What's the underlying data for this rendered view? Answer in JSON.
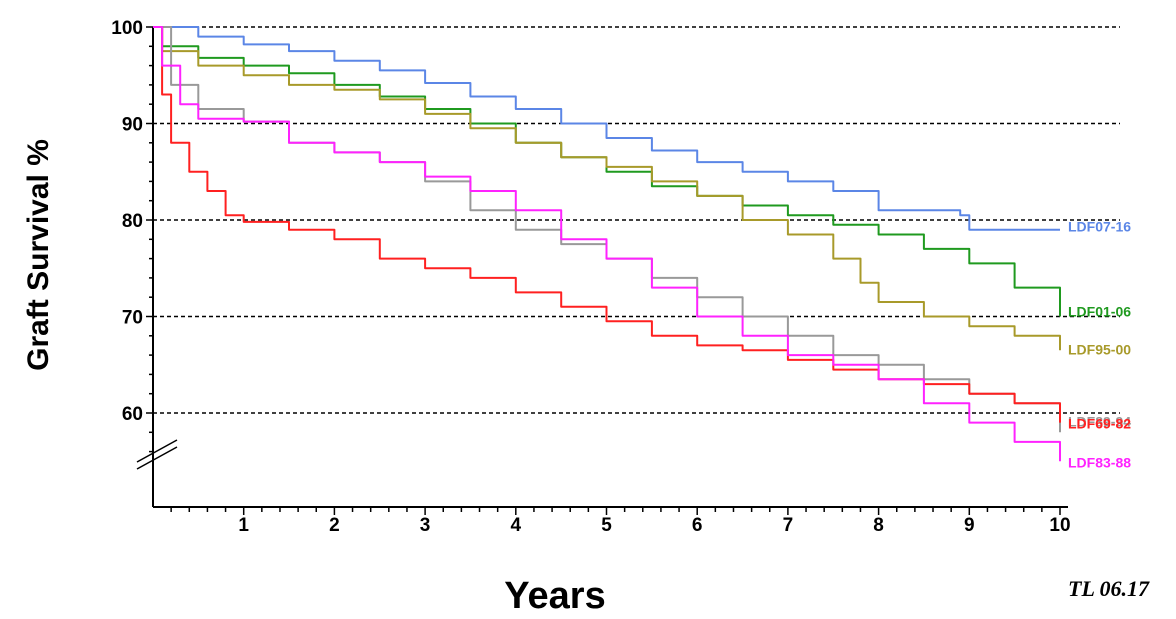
{
  "chart_data": {
    "type": "line",
    "title": "",
    "xlabel": "Years",
    "ylabel": "Graft Survival %",
    "xlim": [
      0,
      10
    ],
    "ylim": [
      55,
      100
    ],
    "x_ticks": [
      "1",
      "2",
      "3",
      "4",
      "5",
      "6",
      "7",
      "8",
      "9",
      "10"
    ],
    "y_ticks": [
      "100",
      "90",
      "80",
      "70",
      "60"
    ],
    "gridlines_y": [
      100,
      90,
      80,
      70,
      60
    ],
    "grid": "dashed horizontal at 100, 90, 80, 70, 60",
    "axis_break": true,
    "footnote": "TL 06.17",
    "series": [
      {
        "name": "LDF07-16",
        "color": "#5b86e6",
        "points": [
          [
            0,
            100
          ],
          [
            0.5,
            99
          ],
          [
            1,
            98.2
          ],
          [
            1.5,
            97.5
          ],
          [
            2,
            96.5
          ],
          [
            2.5,
            95.5
          ],
          [
            3,
            94.2
          ],
          [
            3.5,
            92.8
          ],
          [
            4,
            91.5
          ],
          [
            4.5,
            90
          ],
          [
            5,
            88.5
          ],
          [
            5.5,
            87.2
          ],
          [
            6,
            86
          ],
          [
            6.5,
            85
          ],
          [
            7,
            84
          ],
          [
            7.5,
            83
          ],
          [
            8,
            81
          ],
          [
            8.5,
            81
          ],
          [
            8.9,
            80.5
          ],
          [
            9,
            79
          ],
          [
            9.5,
            79
          ],
          [
            10,
            79
          ]
        ]
      },
      {
        "name": "LDF01-06",
        "color": "#1f9a1f",
        "points": [
          [
            0,
            100
          ],
          [
            0.1,
            98
          ],
          [
            0.5,
            96.8
          ],
          [
            1,
            96
          ],
          [
            1.5,
            95.2
          ],
          [
            2,
            94
          ],
          [
            2.5,
            92.8
          ],
          [
            3,
            91.5
          ],
          [
            3.5,
            90
          ],
          [
            4,
            88
          ],
          [
            4.5,
            86.5
          ],
          [
            5,
            85
          ],
          [
            5.5,
            83.5
          ],
          [
            6,
            82.5
          ],
          [
            6.5,
            81.5
          ],
          [
            7,
            80.5
          ],
          [
            7.5,
            79.5
          ],
          [
            8,
            78.5
          ],
          [
            8.5,
            77
          ],
          [
            9,
            75.5
          ],
          [
            9.5,
            73
          ],
          [
            10,
            70
          ]
        ]
      },
      {
        "name": "LDF95-00",
        "color": "#a89a2a",
        "points": [
          [
            0,
            100
          ],
          [
            0.1,
            97.5
          ],
          [
            0.5,
            96
          ],
          [
            1,
            95
          ],
          [
            1.5,
            94
          ],
          [
            2,
            93.5
          ],
          [
            2.5,
            92.5
          ],
          [
            3,
            91
          ],
          [
            3.5,
            89.5
          ],
          [
            4,
            88
          ],
          [
            4.5,
            86.5
          ],
          [
            5,
            85.5
          ],
          [
            5.5,
            84
          ],
          [
            6,
            82.5
          ],
          [
            6.5,
            80
          ],
          [
            7,
            78.5
          ],
          [
            7.5,
            76
          ],
          [
            7.8,
            73.5
          ],
          [
            8,
            71.5
          ],
          [
            8.5,
            70
          ],
          [
            9,
            69
          ],
          [
            9.5,
            68
          ],
          [
            10,
            66.5
          ]
        ]
      },
      {
        "name": "LDF89-94",
        "color": "#999999",
        "points": [
          [
            0,
            100
          ],
          [
            0.2,
            94
          ],
          [
            0.5,
            91.5
          ],
          [
            1,
            90.2
          ],
          [
            1.5,
            88
          ],
          [
            2,
            87
          ],
          [
            2.5,
            86
          ],
          [
            3,
            84
          ],
          [
            3.5,
            81
          ],
          [
            4,
            79
          ],
          [
            4.5,
            77.5
          ],
          [
            5,
            76
          ],
          [
            5.5,
            74
          ],
          [
            6,
            72
          ],
          [
            6.5,
            70
          ],
          [
            7,
            68
          ],
          [
            7.5,
            66
          ],
          [
            8,
            65
          ],
          [
            8.5,
            63.5
          ],
          [
            9,
            62
          ],
          [
            9.5,
            61
          ],
          [
            10,
            58
          ]
        ]
      },
      {
        "name": "LDF69-82",
        "color": "#ff2020",
        "points": [
          [
            0,
            100
          ],
          [
            0.1,
            93
          ],
          [
            0.2,
            88
          ],
          [
            0.4,
            85
          ],
          [
            0.6,
            83
          ],
          [
            0.8,
            80.5
          ],
          [
            1,
            79.8
          ],
          [
            1.5,
            79
          ],
          [
            2,
            78
          ],
          [
            2.5,
            76
          ],
          [
            3,
            75
          ],
          [
            3.5,
            74
          ],
          [
            4,
            72.5
          ],
          [
            4.5,
            71
          ],
          [
            5,
            69.5
          ],
          [
            5.5,
            68
          ],
          [
            6,
            67
          ],
          [
            6.5,
            66.5
          ],
          [
            7,
            65.5
          ],
          [
            7.5,
            64.5
          ],
          [
            8,
            63.5
          ],
          [
            8.5,
            63
          ],
          [
            9,
            62
          ],
          [
            9.5,
            61
          ],
          [
            10,
            59
          ]
        ]
      },
      {
        "name": "LDF83-88",
        "color": "#ff22ff",
        "points": [
          [
            0,
            100
          ],
          [
            0.1,
            96
          ],
          [
            0.3,
            92
          ],
          [
            0.5,
            90.5
          ],
          [
            1,
            90.2
          ],
          [
            1.5,
            88
          ],
          [
            2,
            87
          ],
          [
            2.5,
            86
          ],
          [
            3,
            84.5
          ],
          [
            3.5,
            83
          ],
          [
            4,
            81
          ],
          [
            4.5,
            78
          ],
          [
            5,
            76
          ],
          [
            5.5,
            73
          ],
          [
            6,
            70
          ],
          [
            6.5,
            68
          ],
          [
            7,
            66
          ],
          [
            7.5,
            65
          ],
          [
            8,
            63.5
          ],
          [
            8.5,
            61
          ],
          [
            9,
            59
          ],
          [
            9.5,
            57
          ],
          [
            10,
            55
          ]
        ]
      }
    ]
  }
}
